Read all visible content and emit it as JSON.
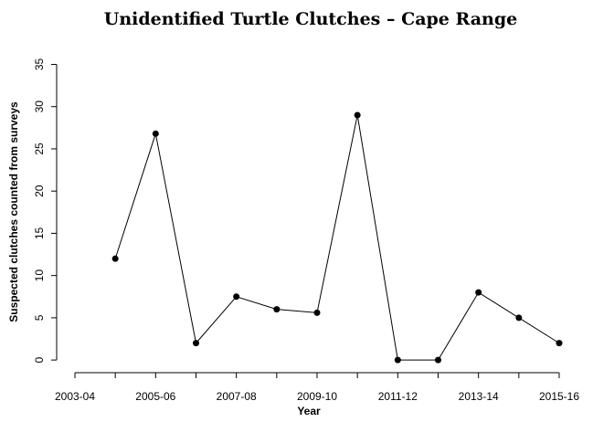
{
  "chart_data": {
    "type": "line",
    "title": "Unidentified Turtle Clutches – Cape Range",
    "x_label": "Year",
    "y_label": "Suspected clutches counted from surveys",
    "categories": [
      "2003-04",
      null,
      "2005-06",
      null,
      "2007-08",
      null,
      "2009-10",
      null,
      "2011-12",
      null,
      "2013-14",
      null,
      "2015-16"
    ],
    "values": [
      null,
      12,
      26.8,
      2,
      7.5,
      6,
      5.6,
      29,
      0,
      0,
      8,
      5,
      2
    ],
    "color": "#000000",
    "ylim": [
      -1.5,
      37
    ],
    "yticks": [
      0,
      5,
      10,
      15,
      20,
      25,
      30,
      35
    ],
    "grid": false
  }
}
